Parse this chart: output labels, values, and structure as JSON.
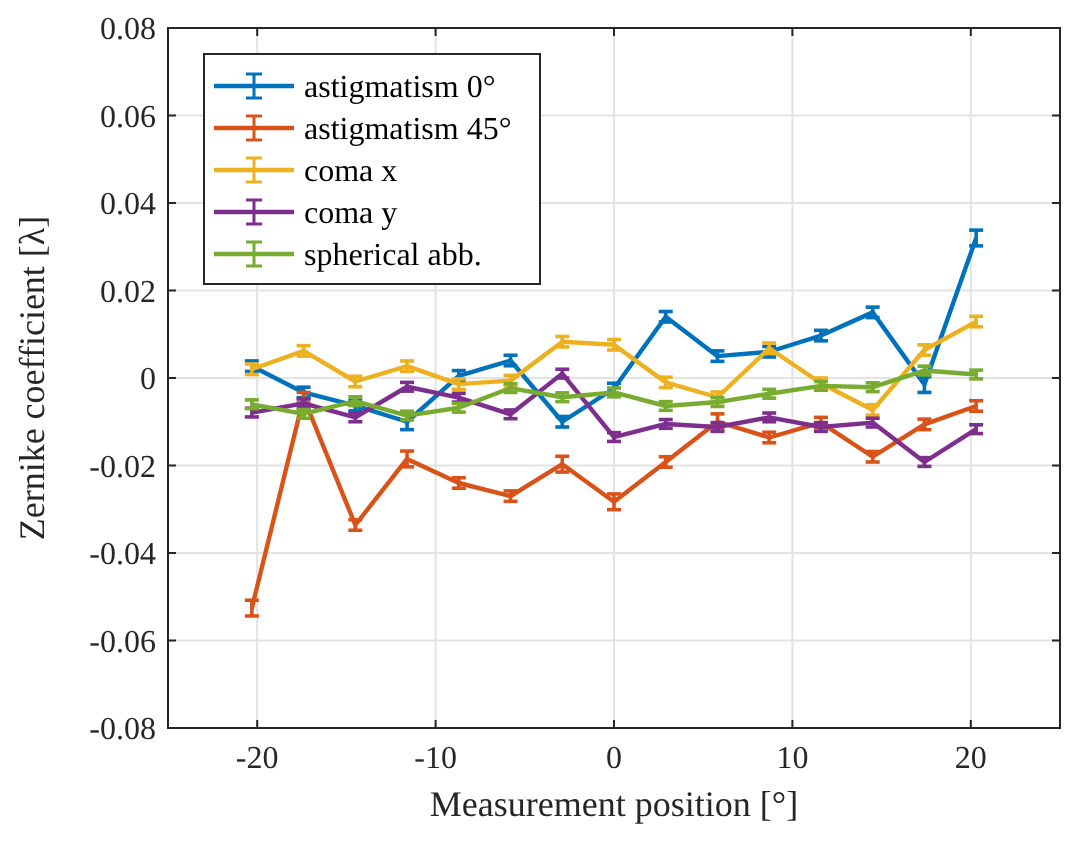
{
  "chart_data": {
    "type": "line",
    "xlabel": "Measurement position [°]",
    "ylabel": "Zernike coefficient [λ]",
    "x": [
      -20.3,
      -17.4,
      -14.5,
      -11.6,
      -8.7,
      -5.8,
      -2.9,
      0,
      2.9,
      5.8,
      8.7,
      11.6,
      14.5,
      17.4,
      20.3
    ],
    "xlim": [
      -25,
      25
    ],
    "xticks": [
      -20,
      -10,
      0,
      10,
      20
    ],
    "ylim": [
      -0.08,
      0.08
    ],
    "yticks": [
      -0.08,
      -0.06,
      -0.04,
      -0.02,
      0,
      0.02,
      0.04,
      0.06,
      0.08
    ],
    "grid": true,
    "legend": "top left",
    "line_style": "solid",
    "series": [
      {
        "name": "astigmatism 0°",
        "color": "#0072bd",
        "values": [
          0.0027,
          -0.0033,
          -0.0063,
          -0.01,
          0.0005,
          0.004,
          -0.01,
          -0.0024,
          0.014,
          0.005,
          0.006,
          0.0097,
          0.015,
          -0.0015,
          0.032
        ],
        "errors": [
          0.0012,
          0.0012,
          0.0012,
          0.0018,
          0.0012,
          0.0012,
          0.0012,
          0.0012,
          0.0012,
          0.0012,
          0.0012,
          0.0012,
          0.0012,
          0.0018,
          0.0018
        ]
      },
      {
        "name": "astigmatism 45°",
        "color": "#d95319",
        "values": [
          -0.0526,
          -0.0045,
          -0.0336,
          -0.0185,
          -0.024,
          -0.027,
          -0.0197,
          -0.0283,
          -0.0192,
          -0.01,
          -0.0136,
          -0.0102,
          -0.018,
          -0.0106,
          -0.0064
        ],
        "errors": [
          0.0018,
          0.0012,
          0.0012,
          0.0018,
          0.0012,
          0.0012,
          0.0018,
          0.0018,
          0.0012,
          0.0018,
          0.0012,
          0.0012,
          0.0012,
          0.0012,
          0.0012
        ]
      },
      {
        "name": "coma x",
        "color": "#edb120",
        "values": [
          0.002,
          0.0062,
          -0.0008,
          0.0027,
          -0.0014,
          -0.0006,
          0.0083,
          0.0076,
          -0.001,
          -0.0044,
          0.0068,
          -0.0012,
          -0.0073,
          0.0064,
          0.0129
        ],
        "errors": [
          0.0012,
          0.0012,
          0.0012,
          0.0012,
          0.0012,
          0.0012,
          0.0012,
          0.0012,
          0.0012,
          0.0012,
          0.0012,
          0.0012,
          0.0012,
          0.0012,
          0.0012
        ]
      },
      {
        "name": "coma y",
        "color": "#7e2f8e",
        "values": [
          -0.0079,
          -0.0058,
          -0.009,
          -0.002,
          -0.0045,
          -0.0083,
          0.001,
          -0.0135,
          -0.0105,
          -0.0112,
          -0.009,
          -0.0112,
          -0.0102,
          -0.0192,
          -0.0117
        ],
        "errors": [
          0.001,
          0.001,
          0.001,
          0.001,
          0.001,
          0.001,
          0.001,
          0.001,
          0.001,
          0.001,
          0.001,
          0.001,
          0.001,
          0.001,
          0.001
        ]
      },
      {
        "name": "spherical abb.",
        "color": "#77ac30",
        "values": [
          -0.006,
          -0.0082,
          -0.0053,
          -0.0086,
          -0.0068,
          -0.0023,
          -0.0044,
          -0.0033,
          -0.0064,
          -0.0055,
          -0.0036,
          -0.0018,
          -0.0021,
          0.0017,
          0.0008
        ],
        "errors": [
          0.001,
          0.001,
          0.001,
          0.001,
          0.001,
          0.001,
          0.001,
          0.001,
          0.001,
          0.001,
          0.001,
          0.001,
          0.001,
          0.001,
          0.001
        ]
      }
    ]
  }
}
